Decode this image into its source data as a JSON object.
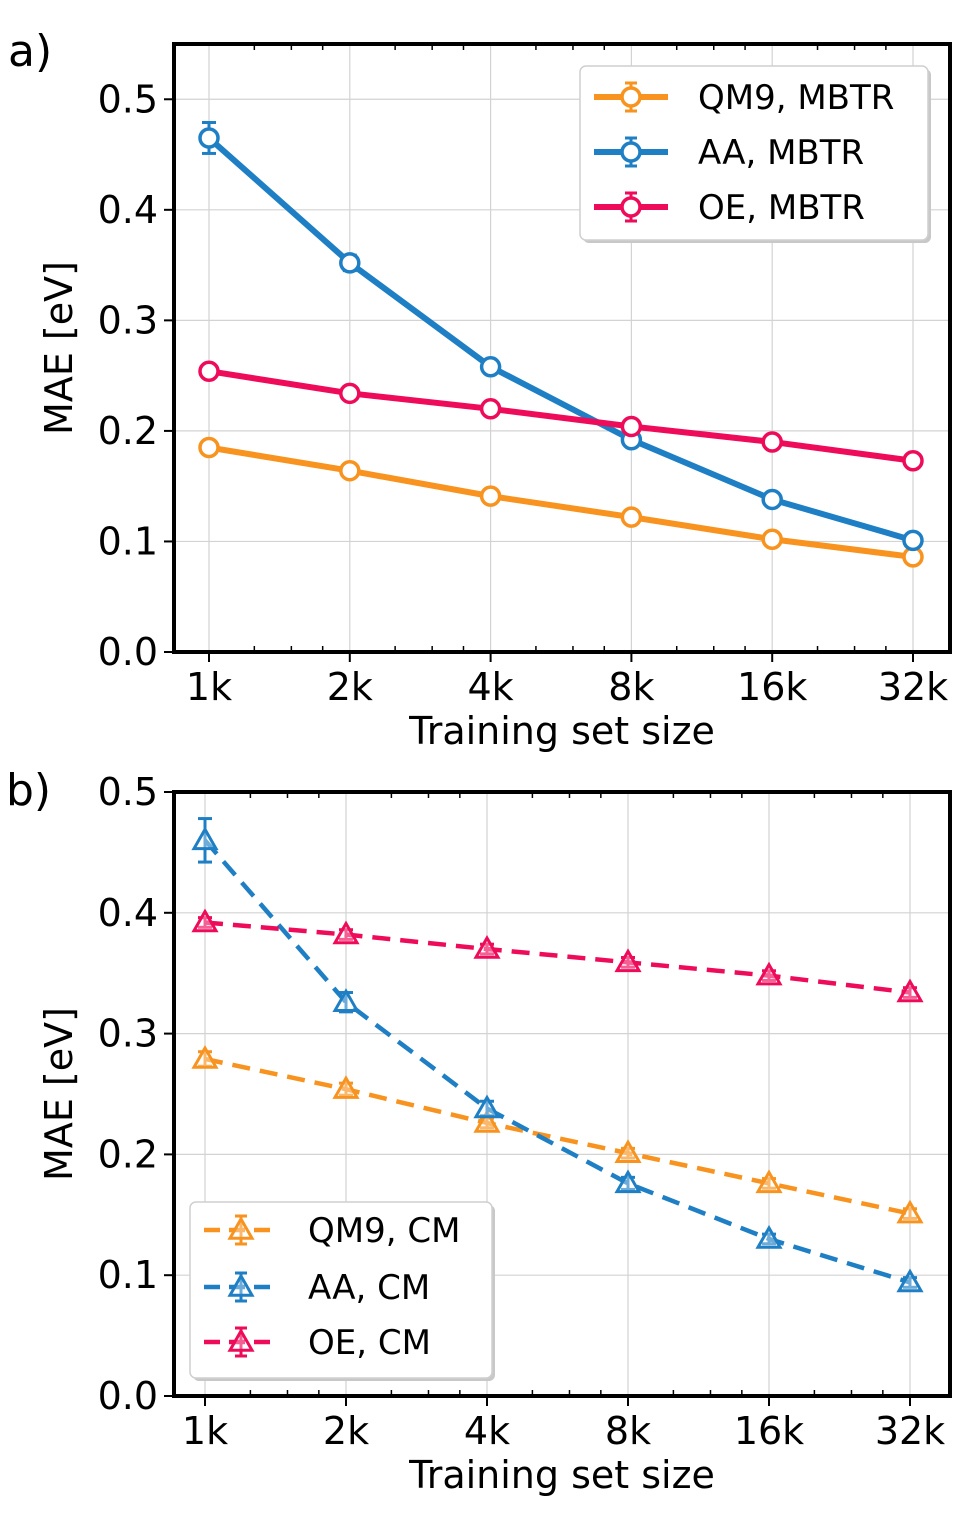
{
  "chart_data": [
    {
      "panel_label": "a)",
      "type": "line",
      "categories": [
        "1k",
        "2k",
        "4k",
        "8k",
        "16k",
        "32k"
      ],
      "xlabel": "Training set size",
      "ylabel": "MAE [eV]",
      "ylim": [
        0,
        0.55
      ],
      "yticks": [
        "0.0",
        "0.1",
        "0.2",
        "0.3",
        "0.4",
        "0.5"
      ],
      "grid": true,
      "legend_position": "top-right",
      "marker": "circle",
      "dashed": false,
      "series": [
        {
          "name": "QM9, MBTR",
          "color": "#f7931e",
          "values": [
            0.185,
            0.164,
            0.141,
            0.122,
            0.102,
            0.086
          ],
          "errors": [
            0.004,
            0.004,
            0.003,
            0.003,
            0.003,
            0.003
          ]
        },
        {
          "name": "AA, MBTR",
          "color": "#1f7fc4",
          "values": [
            0.465,
            0.352,
            0.258,
            0.192,
            0.138,
            0.101
          ],
          "errors": [
            0.014,
            0.007,
            0.005,
            0.004,
            0.004,
            0.003
          ]
        },
        {
          "name": "OE, MBTR",
          "color": "#ee0b5a",
          "values": [
            0.254,
            0.234,
            0.22,
            0.204,
            0.19,
            0.173
          ],
          "errors": [
            0.005,
            0.004,
            0.003,
            0.003,
            0.003,
            0.003
          ]
        }
      ]
    },
    {
      "panel_label": "b)",
      "type": "line",
      "categories": [
        "1k",
        "2k",
        "4k",
        "8k",
        "16k",
        "32k"
      ],
      "xlabel": "Training set size",
      "ylabel": "MAE [eV]",
      "ylim": [
        0,
        0.5
      ],
      "yticks": [
        "0.0",
        "0.1",
        "0.2",
        "0.3",
        "0.4",
        "0.5"
      ],
      "grid": true,
      "legend_position": "bottom-left",
      "marker": "triangle",
      "dashed": true,
      "series": [
        {
          "name": "QM9, CM",
          "color": "#f7931e",
          "values": [
            0.279,
            0.254,
            0.226,
            0.201,
            0.176,
            0.151
          ],
          "errors": [
            0.006,
            0.005,
            0.004,
            0.004,
            0.004,
            0.004
          ]
        },
        {
          "name": "AA, CM",
          "color": "#1f7fc4",
          "values": [
            0.46,
            0.326,
            0.238,
            0.176,
            0.13,
            0.094
          ],
          "errors": [
            0.018,
            0.008,
            0.006,
            0.005,
            0.004,
            0.004
          ]
        },
        {
          "name": "OE, CM",
          "color": "#ee0b5a",
          "values": [
            0.392,
            0.382,
            0.37,
            0.359,
            0.348,
            0.334
          ],
          "errors": [
            0.004,
            0.004,
            0.004,
            0.004,
            0.004,
            0.004
          ]
        }
      ]
    }
  ]
}
